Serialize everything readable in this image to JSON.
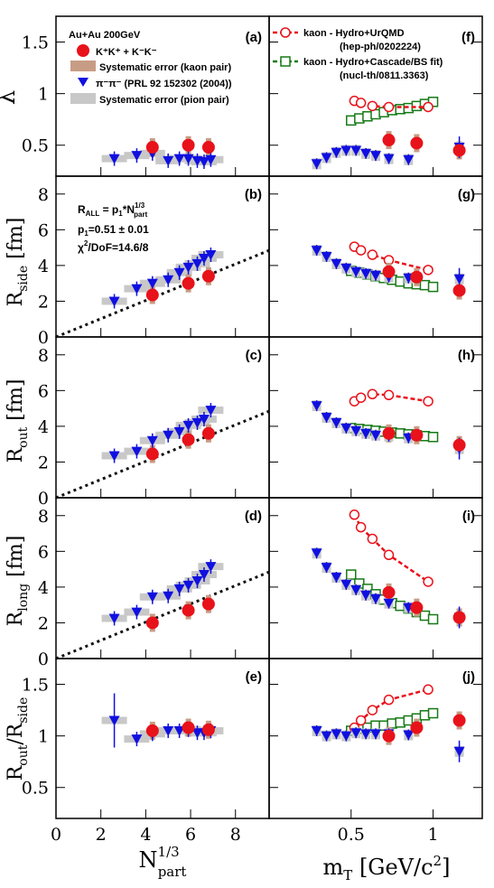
{
  "colors": {
    "kaon": "#e8121a",
    "pion": "#1010e0",
    "kaon_sys": "#c89c84",
    "pion_sys": "#c8c8c8",
    "hydro_urqmd": "#e8121a",
    "hydro_cascade": "#167a16",
    "fit_line": "#111111"
  },
  "axes": {
    "left_xlabel": "N",
    "left_xlabel_sup": "1/3",
    "left_xlabel_sub": "part",
    "right_xlabel": "m",
    "right_xlabel_sub": "T",
    "right_xlabel_unit": "[GeV/c",
    "right_xlabel_unit_sup": "2",
    "right_xlabel_unit_end": "]",
    "left_xticks": [
      "0",
      "2",
      "4",
      "6",
      "8"
    ],
    "right_xticks": [
      "0",
      "0.5",
      "1"
    ],
    "ylabels": {
      "lambda": "λ",
      "side": {
        "main": "R",
        "sub": "side",
        "unit": "[fm]"
      },
      "out": {
        "main": "R",
        "sub": "out",
        "unit": "[fm]"
      },
      "long": {
        "main": "R",
        "sub": "long",
        "unit": "[fm]"
      },
      "ratio": {
        "num": "R",
        "num_sub": "out",
        "slash": "/R",
        "den_sub": "side"
      }
    },
    "yticks": {
      "lambda": [
        "0.5",
        "1",
        "1.5"
      ],
      "radius": [
        "0",
        "2",
        "4",
        "6",
        "8"
      ],
      "ratio": [
        "0.5",
        "1",
        "1.5"
      ]
    }
  },
  "panel_tags": {
    "a": "(a)",
    "b": "(b)",
    "c": "(c)",
    "d": "(d)",
    "e": "(e)",
    "f": "(f)",
    "g": "(g)",
    "h": "(h)",
    "i": "(i)",
    "j": "(j)"
  },
  "legend_left": {
    "system": "Au+Au 200GeV",
    "kaon_label": "K⁺K⁺ + K⁻K⁻",
    "kaon_sys_label": "Systematic error (kaon pair)",
    "pion_label": "π⁻π⁻ (PRL 92 152302 (2004))",
    "pion_sys_label": "Systematic error (pion pair)"
  },
  "legend_right": {
    "urqmd_label": "kaon - Hydro+UrQMD",
    "urqmd_ref": "(hep-ph/0202224)",
    "cascade_label": "kaon - Hydro+Cascade/BS fit)",
    "cascade_ref": "(nucl-th/0811.3363)"
  },
  "fit_text": {
    "formula": "R",
    "formula_sub": "ALL",
    "formula_mid": " = p",
    "formula_mid_sub": "1",
    "formula_star": "*N",
    "formula_sup": "1/3",
    "formula_sub2": "part",
    "p1": "p",
    "p1_sub": "1",
    "p1_val": "=0.51 ± 0.01",
    "chi2": "χ",
    "chi2_sup": "2",
    "chi2_val": "/DoF=14.6/8"
  },
  "chart_data": {
    "type": "scatter",
    "xlim_left": [
      0,
      9.5
    ],
    "xlim_right": [
      0,
      1.3
    ],
    "ylim_lambda": [
      0.2,
      1.75
    ],
    "ylim_radius": [
      0,
      9
    ],
    "ylim_ratio": [
      0.2,
      1.75
    ],
    "fit_slope": 0.51,
    "left": {
      "kaon_x": [
        4.3,
        5.9,
        6.8
      ],
      "kaon_lambda": [
        0.48,
        0.5,
        0.48
      ],
      "kaon_side": [
        2.35,
        3.0,
        3.4
      ],
      "kaon_out": [
        2.45,
        3.25,
        3.6
      ],
      "kaon_long": [
        2.0,
        2.7,
        3.05
      ],
      "kaon_ratio": [
        1.05,
        1.08,
        1.06
      ],
      "pion_x": [
        2.6,
        3.6,
        4.3,
        5.0,
        5.5,
        5.9,
        6.3,
        6.6,
        6.9
      ],
      "pion_lambda": [
        0.37,
        0.4,
        0.42,
        0.35,
        0.37,
        0.37,
        0.35,
        0.34,
        0.36
      ],
      "pion_side": [
        2.0,
        2.7,
        3.0,
        3.2,
        3.6,
        3.9,
        4.1,
        4.4,
        4.6
      ],
      "pion_out": [
        2.35,
        2.6,
        3.2,
        3.5,
        3.7,
        4.05,
        4.2,
        4.4,
        4.9
      ],
      "pion_long": [
        2.25,
        2.6,
        3.45,
        3.5,
        3.9,
        4.1,
        4.35,
        4.7,
        5.15
      ],
      "pion_ratio": [
        1.15,
        0.97,
        1.02,
        1.05,
        1.05,
        1.06,
        1.03,
        1.03,
        1.05
      ]
    },
    "right": {
      "kaon_x": [
        0.73,
        0.9,
        1.16
      ],
      "kaon_lambda": [
        0.55,
        0.52,
        0.45
      ],
      "kaon_side": [
        3.65,
        3.35,
        2.6
      ],
      "kaon_out": [
        3.6,
        3.5,
        2.95
      ],
      "kaon_long": [
        3.7,
        2.85,
        2.3
      ],
      "kaon_ratio": [
        1.0,
        1.08,
        1.15
      ],
      "pion_x": [
        0.29,
        0.35,
        0.41,
        0.47,
        0.53,
        0.59,
        0.65,
        0.73,
        0.85,
        1.16
      ],
      "pion_lambda": [
        0.32,
        0.38,
        0.43,
        0.45,
        0.45,
        0.42,
        0.4,
        0.37,
        0.36,
        0.48
      ],
      "pion_side": [
        4.85,
        4.5,
        4.1,
        3.85,
        3.65,
        3.55,
        3.45,
        3.35,
        3.3,
        3.25
      ],
      "pion_out": [
        5.15,
        4.5,
        4.2,
        3.9,
        3.75,
        3.6,
        3.5,
        3.45,
        3.35,
        2.75
      ],
      "pion_long": [
        5.9,
        5.1,
        4.55,
        4.15,
        3.85,
        3.55,
        3.35,
        3.1,
        2.85,
        2.3
      ],
      "pion_ratio": [
        1.05,
        1.0,
        1.02,
        1.0,
        1.03,
        1.02,
        1.02,
        1.02,
        1.01,
        0.85
      ],
      "urqmd_x": [
        0.52,
        0.56,
        0.63,
        0.73,
        0.97
      ],
      "urqmd_lambda": [
        0.93,
        0.91,
        0.88,
        0.87,
        0.87
      ],
      "urqmd_side": [
        5.05,
        4.85,
        4.6,
        4.3,
        3.75
      ],
      "urqmd_out": [
        5.4,
        5.6,
        5.8,
        5.75,
        5.4
      ],
      "urqmd_long": [
        8.05,
        7.35,
        6.7,
        5.8,
        4.3
      ],
      "urqmd_ratio": [
        1.08,
        1.15,
        1.25,
        1.35,
        1.45
      ],
      "cascade_x": [
        0.5,
        0.55,
        0.6,
        0.65,
        0.7,
        0.75,
        0.8,
        0.85,
        0.9,
        0.95,
        1.0
      ],
      "cascade_lambda": [
        0.74,
        0.76,
        0.78,
        0.8,
        0.82,
        0.84,
        0.85,
        0.86,
        0.88,
        0.9,
        0.92
      ],
      "cascade_side": [
        3.7,
        3.6,
        3.5,
        3.4,
        3.3,
        3.2,
        3.1,
        3.0,
        2.95,
        2.9,
        2.8
      ],
      "cascade_out": [
        3.9,
        3.85,
        3.8,
        3.75,
        3.7,
        3.65,
        3.6,
        3.55,
        3.5,
        3.45,
        3.4
      ],
      "cascade_long": [
        4.7,
        4.2,
        3.9,
        3.6,
        3.3,
        3.1,
        2.95,
        2.8,
        2.6,
        2.4,
        2.2
      ],
      "cascade_ratio": [
        1.05,
        1.07,
        1.08,
        1.1,
        1.1,
        1.12,
        1.13,
        1.15,
        1.17,
        1.2,
        1.22
      ]
    }
  }
}
